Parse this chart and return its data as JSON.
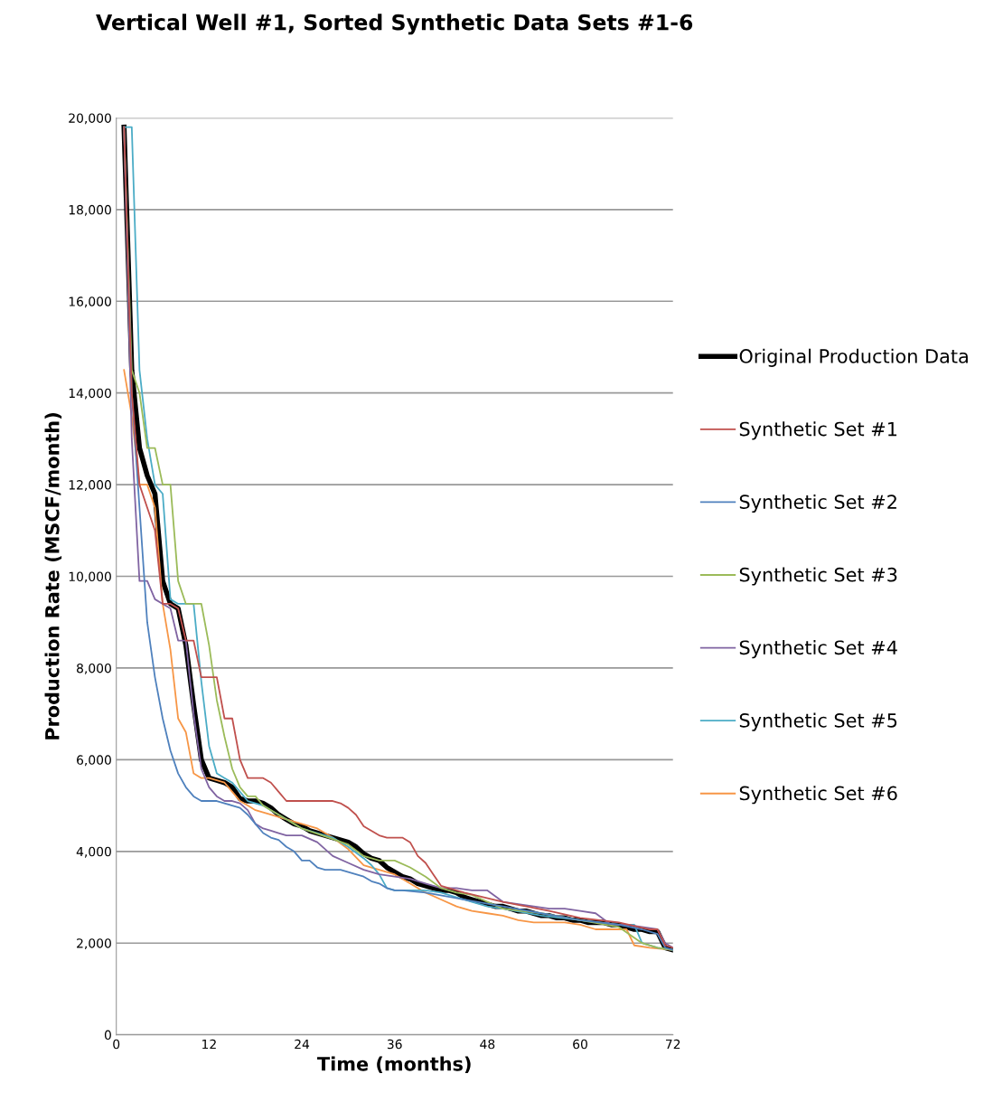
{
  "chart_data": {
    "type": "line",
    "title": "Vertical Well #1, Sorted Synthetic Data Sets #1-6",
    "xlabel": "Time (months)",
    "ylabel": "Production Rate (MSCF/month)",
    "xlim": [
      0,
      72
    ],
    "xticks": [
      0,
      12,
      24,
      36,
      48,
      60,
      72
    ],
    "ylim": [
      0,
      20000
    ],
    "yticks": [
      {
        "value": 0,
        "label": "0"
      },
      {
        "value": 2000,
        "label": "2,000"
      },
      {
        "value": 4000,
        "label": "4,000"
      },
      {
        "value": 6000,
        "label": "6,000"
      },
      {
        "value": 8000,
        "label": "8,000"
      },
      {
        "value": 10000,
        "label": "10,000"
      },
      {
        "value": 12000,
        "label": "12,000"
      },
      {
        "value": 14000,
        "label": "14,000"
      },
      {
        "value": 16000,
        "label": "16,000"
      },
      {
        "value": 18000,
        "label": "18,000"
      },
      {
        "value": 20000,
        "label": "20,000"
      }
    ],
    "grid": "y",
    "legend": "right",
    "marker": "none",
    "line_style": "solid",
    "series": [
      {
        "name": "Original Production Data",
        "color": "#000000",
        "x": [
          1,
          2,
          3,
          4,
          5,
          6,
          7,
          8,
          9,
          10,
          11,
          12,
          13,
          14,
          15,
          16,
          17,
          18,
          19,
          20,
          21,
          22,
          23,
          24,
          25,
          26,
          27,
          28,
          29,
          30,
          31,
          32,
          33,
          34,
          35,
          36,
          37,
          38,
          39,
          40,
          41,
          42,
          43,
          44,
          45,
          46,
          47,
          48,
          49,
          50,
          51,
          52,
          53,
          54,
          55,
          56,
          57,
          58,
          59,
          60,
          61,
          62,
          63,
          64,
          65,
          66,
          67,
          68,
          69,
          70,
          71,
          72
        ],
        "values": [
          19800,
          14500,
          12800,
          12200,
          11800,
          9900,
          9400,
          9300,
          8500,
          7200,
          6000,
          5600,
          5550,
          5500,
          5400,
          5150,
          5100,
          5100,
          5050,
          4950,
          4800,
          4700,
          4600,
          4550,
          4450,
          4400,
          4350,
          4300,
          4250,
          4200,
          4100,
          3950,
          3850,
          3800,
          3650,
          3550,
          3450,
          3400,
          3300,
          3250,
          3200,
          3150,
          3150,
          3100,
          3000,
          2950,
          2900,
          2850,
          2800,
          2800,
          2750,
          2700,
          2700,
          2650,
          2600,
          2600,
          2550,
          2550,
          2500,
          2500,
          2450,
          2450,
          2450,
          2400,
          2400,
          2350,
          2300,
          2300,
          2250,
          2250,
          1900,
          1850
        ]
      },
      {
        "name": "Synthetic Set #1",
        "color": "#c0504d",
        "x": [
          1,
          2,
          3,
          4,
          5,
          6,
          7,
          8,
          9,
          10,
          11,
          12,
          13,
          14,
          15,
          16,
          17,
          18,
          19,
          20,
          21,
          22,
          28,
          29,
          30,
          31,
          32,
          33,
          34,
          35,
          37,
          38,
          39,
          40,
          41,
          42,
          43,
          44,
          45,
          50,
          56,
          60,
          65,
          69,
          70,
          71,
          72
        ],
        "values": [
          19800,
          14000,
          12000,
          11500,
          11000,
          9400,
          9400,
          9300,
          8600,
          8600,
          7800,
          7800,
          7800,
          6900,
          6900,
          6000,
          5600,
          5600,
          5600,
          5500,
          5300,
          5100,
          5100,
          5050,
          4950,
          4800,
          4550,
          4450,
          4350,
          4300,
          4300,
          4200,
          3900,
          3750,
          3500,
          3250,
          3200,
          3150,
          3100,
          2900,
          2700,
          2550,
          2450,
          2300,
          2300,
          1950,
          1900
        ]
      },
      {
        "name": "Synthetic Set #2",
        "color": "#4f81bd",
        "x": [
          1,
          2,
          3,
          4,
          5,
          6,
          7,
          8,
          9,
          10,
          11,
          12,
          13,
          14,
          15,
          16,
          17,
          18,
          19,
          20,
          21,
          22,
          23,
          24,
          25,
          26,
          27,
          28,
          29,
          30,
          31,
          32,
          33,
          34,
          35,
          36,
          37,
          40,
          45,
          50,
          55,
          60,
          65,
          68,
          70,
          71,
          72
        ],
        "values": [
          19800,
          14000,
          11500,
          9000,
          7800,
          6900,
          6200,
          5700,
          5400,
          5200,
          5100,
          5100,
          5100,
          5050,
          5000,
          4950,
          4800,
          4600,
          4400,
          4300,
          4250,
          4100,
          4000,
          3800,
          3800,
          3650,
          3600,
          3600,
          3600,
          3550,
          3500,
          3450,
          3350,
          3300,
          3200,
          3150,
          3150,
          3100,
          2950,
          2800,
          2650,
          2500,
          2400,
          2300,
          2200,
          1900,
          1850
        ]
      },
      {
        "name": "Synthetic Set #3",
        "color": "#9bbb59",
        "x": [
          1,
          2,
          3,
          4,
          5,
          6,
          7,
          8,
          9,
          10,
          11,
          12,
          13,
          14,
          15,
          16,
          17,
          18,
          19,
          20,
          21,
          22,
          23,
          24,
          30,
          32,
          34,
          36,
          38,
          40,
          42,
          44,
          46,
          48,
          50,
          55,
          60,
          65,
          68,
          70,
          72
        ],
        "values": [
          19800,
          14500,
          14000,
          12800,
          12800,
          12000,
          12000,
          9900,
          9400,
          9400,
          9400,
          8500,
          7300,
          6500,
          5800,
          5400,
          5200,
          5200,
          5000,
          4900,
          4800,
          4700,
          4600,
          4500,
          4150,
          3900,
          3800,
          3800,
          3650,
          3450,
          3200,
          3100,
          3050,
          2900,
          2750,
          2650,
          2500,
          2350,
          2000,
          1900,
          1850
        ]
      },
      {
        "name": "Synthetic Set #4",
        "color": "#8064a2",
        "x": [
          1,
          2,
          3,
          4,
          5,
          6,
          7,
          8,
          9,
          10,
          11,
          12,
          13,
          14,
          15,
          16,
          17,
          18,
          19,
          20,
          21,
          22,
          24,
          26,
          28,
          30,
          32,
          34,
          36,
          38,
          40,
          42,
          44,
          46,
          48,
          50,
          52,
          54,
          56,
          58,
          60,
          62,
          64,
          66,
          68,
          70,
          71,
          72
        ],
        "values": [
          19800,
          13000,
          9900,
          9900,
          9500,
          9400,
          9300,
          8600,
          8600,
          7000,
          5800,
          5400,
          5200,
          5100,
          5100,
          5050,
          4900,
          4600,
          4500,
          4450,
          4400,
          4350,
          4350,
          4200,
          3900,
          3750,
          3600,
          3500,
          3450,
          3400,
          3300,
          3200,
          3200,
          3150,
          3150,
          2900,
          2850,
          2800,
          2750,
          2750,
          2700,
          2650,
          2400,
          2400,
          2350,
          2300,
          2000,
          1900
        ]
      },
      {
        "name": "Synthetic Set #5",
        "color": "#4bacc6",
        "x": [
          1,
          2,
          3,
          4,
          5,
          6,
          7,
          8,
          9,
          10,
          11,
          12,
          13,
          14,
          15,
          16,
          17,
          18,
          19,
          20,
          22,
          24,
          26,
          28,
          30,
          32,
          33,
          34,
          35,
          36,
          38,
          40,
          42,
          44,
          46,
          48,
          50,
          55,
          60,
          65,
          67,
          68,
          70,
          72
        ],
        "values": [
          19800,
          19800,
          14500,
          13000,
          12000,
          11800,
          9500,
          9400,
          9400,
          9400,
          7700,
          6300,
          5700,
          5600,
          5500,
          5300,
          5100,
          5050,
          5000,
          4900,
          4700,
          4500,
          4400,
          4300,
          4100,
          3850,
          3700,
          3500,
          3200,
          3150,
          3150,
          3150,
          3100,
          3000,
          2900,
          2800,
          2750,
          2600,
          2500,
          2400,
          2400,
          2000,
          1900,
          1850
        ]
      },
      {
        "name": "Synthetic Set #6",
        "color": "#f79646",
        "x": [
          1,
          2,
          3,
          4,
          5,
          6,
          7,
          8,
          9,
          10,
          11,
          12,
          13,
          14,
          15,
          16,
          17,
          18,
          20,
          22,
          24,
          26,
          28,
          30,
          32,
          34,
          36,
          38,
          40,
          42,
          44,
          46,
          48,
          50,
          52,
          54,
          56,
          58,
          60,
          62,
          64,
          66,
          67,
          69,
          72
        ],
        "values": [
          14500,
          13500,
          12000,
          12000,
          11500,
          9400,
          8400,
          6900,
          6600,
          5700,
          5600,
          5600,
          5550,
          5500,
          5300,
          5100,
          5000,
          4900,
          4800,
          4700,
          4600,
          4500,
          4300,
          4050,
          3700,
          3600,
          3500,
          3300,
          3100,
          2950,
          2800,
          2700,
          2650,
          2600,
          2500,
          2450,
          2450,
          2450,
          2400,
          2300,
          2300,
          2300,
          1950,
          1900,
          1850
        ]
      }
    ]
  }
}
